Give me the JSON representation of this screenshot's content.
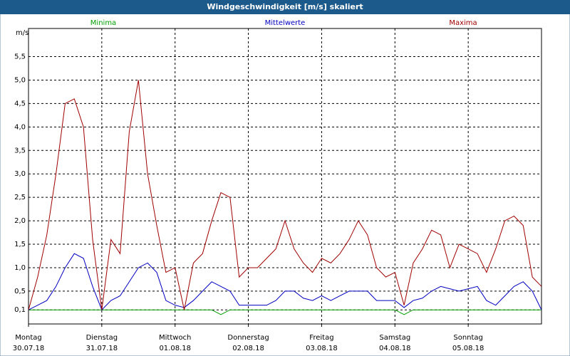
{
  "chart_data": {
    "type": "line",
    "title": "Windgeschwindigkeit [m/s] skaliert",
    "y_label": "m/s",
    "x": [
      0,
      3,
      6,
      9,
      12,
      15,
      18,
      21,
      24,
      27,
      30,
      33,
      36,
      39,
      42,
      45,
      48,
      51,
      54,
      57,
      60,
      63,
      66,
      69,
      72,
      75,
      78,
      81,
      84,
      87,
      90,
      93,
      96,
      99,
      102,
      105,
      108,
      111,
      114,
      117,
      120,
      123,
      126,
      129,
      132,
      135,
      138,
      141,
      144,
      147,
      150,
      153,
      156,
      159,
      162,
      165,
      168
    ],
    "xlim": [
      0,
      168
    ],
    "xticks": [
      {
        "value": 0,
        "label": "Montag"
      },
      {
        "value": 24,
        "label": "Dienstag"
      },
      {
        "value": 48,
        "label": "Mittwoch"
      },
      {
        "value": 72,
        "label": "Donnerstag"
      },
      {
        "value": 96,
        "label": "Freitag"
      },
      {
        "value": 120,
        "label": "Samstag"
      },
      {
        "value": 144,
        "label": "Sonntag"
      }
    ],
    "xtick_dates": [
      "30.07.18",
      "31.07.18",
      "01.08.18",
      "02.08.18",
      "03.08.18",
      "04.08.18",
      "05.08.18"
    ],
    "ylim": [
      -0.2,
      6.1
    ],
    "yticks": [
      {
        "value": 0.1,
        "label": "0,1"
      },
      {
        "value": 0.5,
        "label": "0,5"
      },
      {
        "value": 1.0,
        "label": "1,0"
      },
      {
        "value": 1.5,
        "label": "1,5"
      },
      {
        "value": 2.0,
        "label": "2,0"
      },
      {
        "value": 2.5,
        "label": "2,5"
      },
      {
        "value": 3.0,
        "label": "3,0"
      },
      {
        "value": 3.5,
        "label": "3,5"
      },
      {
        "value": 4.0,
        "label": "4,0"
      },
      {
        "value": 4.5,
        "label": "4,5"
      },
      {
        "value": 5.0,
        "label": "5,0"
      },
      {
        "value": 5.5,
        "label": "5,5"
      }
    ],
    "grid": true,
    "series": [
      {
        "name": "Minima",
        "color": "#00a000",
        "values": [
          0.1,
          0.1,
          0.1,
          0.1,
          0.1,
          0.1,
          0.1,
          0.1,
          0.1,
          0.1,
          0.1,
          0.1,
          0.1,
          0.1,
          0.1,
          0.1,
          0.1,
          0.1,
          0.1,
          0.1,
          0.1,
          0.0,
          0.1,
          0.1,
          0.1,
          0.1,
          0.1,
          0.1,
          0.1,
          0.1,
          0.1,
          0.1,
          0.1,
          0.1,
          0.1,
          0.1,
          0.1,
          0.1,
          0.1,
          0.1,
          0.1,
          0.0,
          0.1,
          0.1,
          0.1,
          0.1,
          0.1,
          0.1,
          0.1,
          0.1,
          0.1,
          0.1,
          0.1,
          0.1,
          0.1,
          0.1,
          0.1
        ]
      },
      {
        "name": "Mittelwerte",
        "color": "#0000c0",
        "values": [
          0.1,
          0.2,
          0.3,
          0.6,
          1.0,
          1.3,
          1.2,
          0.6,
          0.1,
          0.3,
          0.4,
          0.7,
          1.0,
          1.1,
          0.9,
          0.3,
          0.2,
          0.15,
          0.3,
          0.5,
          0.7,
          0.6,
          0.5,
          0.2,
          0.2,
          0.2,
          0.2,
          0.3,
          0.5,
          0.5,
          0.35,
          0.3,
          0.4,
          0.3,
          0.4,
          0.5,
          0.5,
          0.5,
          0.3,
          0.3,
          0.3,
          0.15,
          0.3,
          0.35,
          0.5,
          0.6,
          0.55,
          0.5,
          0.55,
          0.6,
          0.3,
          0.2,
          0.4,
          0.6,
          0.7,
          0.5,
          0.1
        ]
      },
      {
        "name": "Maxima",
        "color": "#a00000",
        "values": [
          0.1,
          0.8,
          1.7,
          3.0,
          4.5,
          4.6,
          4.0,
          1.6,
          0.1,
          1.6,
          1.3,
          3.9,
          5.0,
          3.0,
          1.9,
          0.9,
          1.0,
          0.1,
          1.1,
          1.3,
          2.0,
          2.6,
          2.5,
          0.8,
          1.0,
          1.0,
          1.2,
          1.4,
          2.0,
          1.4,
          1.1,
          0.9,
          1.2,
          1.1,
          1.3,
          1.6,
          2.0,
          1.7,
          1.0,
          0.8,
          0.9,
          0.2,
          1.1,
          1.4,
          1.8,
          1.7,
          1.0,
          1.5,
          1.4,
          1.3,
          0.9,
          1.4,
          2.0,
          2.1,
          1.9,
          0.8,
          0.6
        ]
      }
    ]
  }
}
